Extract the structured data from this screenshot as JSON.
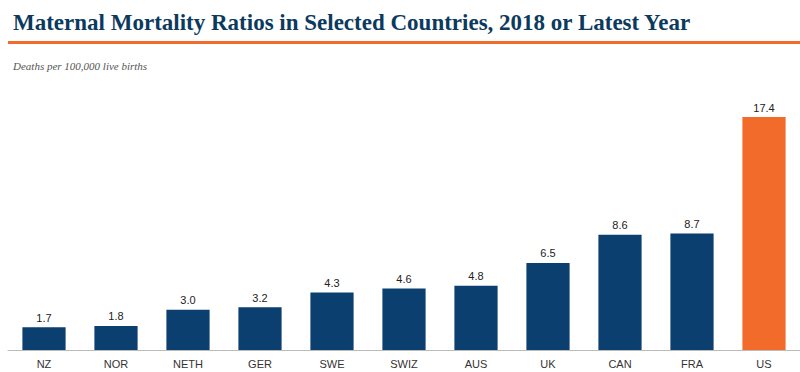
{
  "chart_data": {
    "type": "bar",
    "title": "Maternal Mortality Ratios in Selected Countries, 2018 or Latest Year",
    "subtitle": "Deaths per 100,000 live births",
    "categories": [
      "NZ",
      "NOR",
      "NETH",
      "GER",
      "SWE",
      "SWIZ",
      "AUS",
      "UK",
      "CAN",
      "FRA",
      "US"
    ],
    "values": [
      1.7,
      1.8,
      3.0,
      3.2,
      4.3,
      4.6,
      4.8,
      6.5,
      8.6,
      8.7,
      17.4
    ],
    "value_labels": [
      "1.7",
      "1.8",
      "3.0",
      "3.2",
      "4.3",
      "4.6",
      "4.8",
      "6.5",
      "8.6",
      "8.7",
      "17.4"
    ],
    "colors": [
      "#0b3f6f",
      "#0b3f6f",
      "#0b3f6f",
      "#0b3f6f",
      "#0b3f6f",
      "#0b3f6f",
      "#0b3f6f",
      "#0b3f6f",
      "#0b3f6f",
      "#0b3f6f",
      "#f26b2a"
    ],
    "ylim": [
      0,
      18
    ],
    "yticks": [
      0,
      18
    ],
    "grid": false,
    "data_labels": true,
    "tick_labels": "x"
  }
}
